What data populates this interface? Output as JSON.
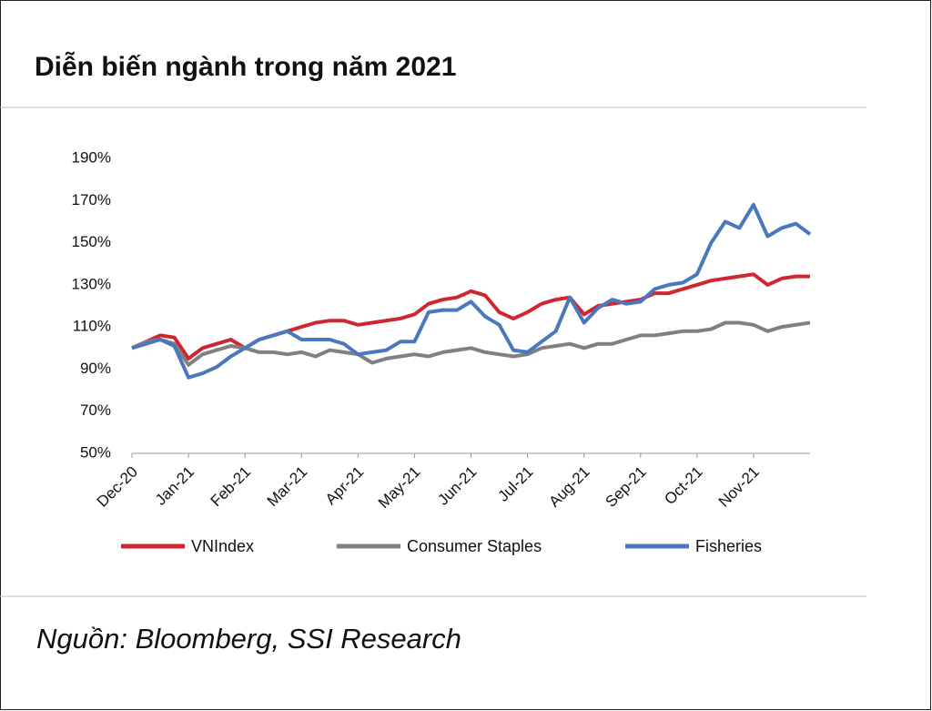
{
  "title": "Diễn biến ngành trong năm 2021",
  "source": "Nguồn: Bloomberg, SSI Research",
  "chart_data": {
    "type": "line",
    "categories": [
      "Dec-20",
      null,
      null,
      null,
      "Jan-21",
      null,
      null,
      null,
      "Feb-21",
      null,
      null,
      null,
      "Mar-21",
      null,
      null,
      null,
      "Apr-21",
      null,
      null,
      null,
      "May-21",
      null,
      null,
      null,
      "Jun-21",
      null,
      null,
      null,
      "Jul-21",
      null,
      null,
      null,
      "Aug-21",
      null,
      null,
      null,
      "Sep-21",
      null,
      null,
      null,
      "Oct-21",
      null,
      null,
      null,
      "Nov-21",
      null,
      null,
      null,
      null
    ],
    "series": [
      {
        "name": "VNIndex",
        "color": "#d0262f",
        "values": [
          100,
          103,
          106,
          105,
          95,
          100,
          102,
          104,
          100,
          104,
          106,
          108,
          110,
          112,
          113,
          113,
          111,
          112,
          113,
          114,
          116,
          121,
          123,
          124,
          127,
          125,
          117,
          114,
          117,
          121,
          123,
          124,
          116,
          120,
          121,
          122,
          123,
          126,
          126,
          128,
          130,
          132,
          133,
          134,
          135,
          130,
          133,
          134,
          134
        ]
      },
      {
        "name": "Consumer Staples",
        "color": "#808080",
        "values": [
          100,
          103,
          104,
          102,
          92,
          97,
          99,
          101,
          100,
          98,
          98,
          97,
          98,
          96,
          99,
          98,
          97,
          93,
          95,
          96,
          97,
          96,
          98,
          99,
          100,
          98,
          97,
          96,
          97,
          100,
          101,
          102,
          100,
          102,
          102,
          104,
          106,
          106,
          107,
          108,
          108,
          109,
          112,
          112,
          111,
          108,
          110,
          111,
          112
        ]
      },
      {
        "name": "Fisheries",
        "color": "#4a78bd",
        "values": [
          100,
          102,
          104,
          101,
          86,
          88,
          91,
          96,
          100,
          104,
          106,
          108,
          104,
          104,
          104,
          102,
          97,
          98,
          99,
          103,
          103,
          117,
          118,
          118,
          122,
          115,
          111,
          99,
          98,
          103,
          108,
          124,
          112,
          119,
          123,
          121,
          122,
          128,
          130,
          131,
          135,
          150,
          160,
          157,
          168,
          153,
          157,
          159,
          154
        ]
      }
    ],
    "ylim": [
      50,
      190
    ],
    "yticks": [
      {
        "value": 50,
        "label": "50%"
      },
      {
        "value": 70,
        "label": "70%"
      },
      {
        "value": 90,
        "label": "90%"
      },
      {
        "value": 110,
        "label": "110%"
      },
      {
        "value": 130,
        "label": "130%"
      },
      {
        "value": 150,
        "label": "150%"
      },
      {
        "value": 170,
        "label": "170%"
      },
      {
        "value": 190,
        "label": "190%"
      }
    ],
    "grid": false
  }
}
